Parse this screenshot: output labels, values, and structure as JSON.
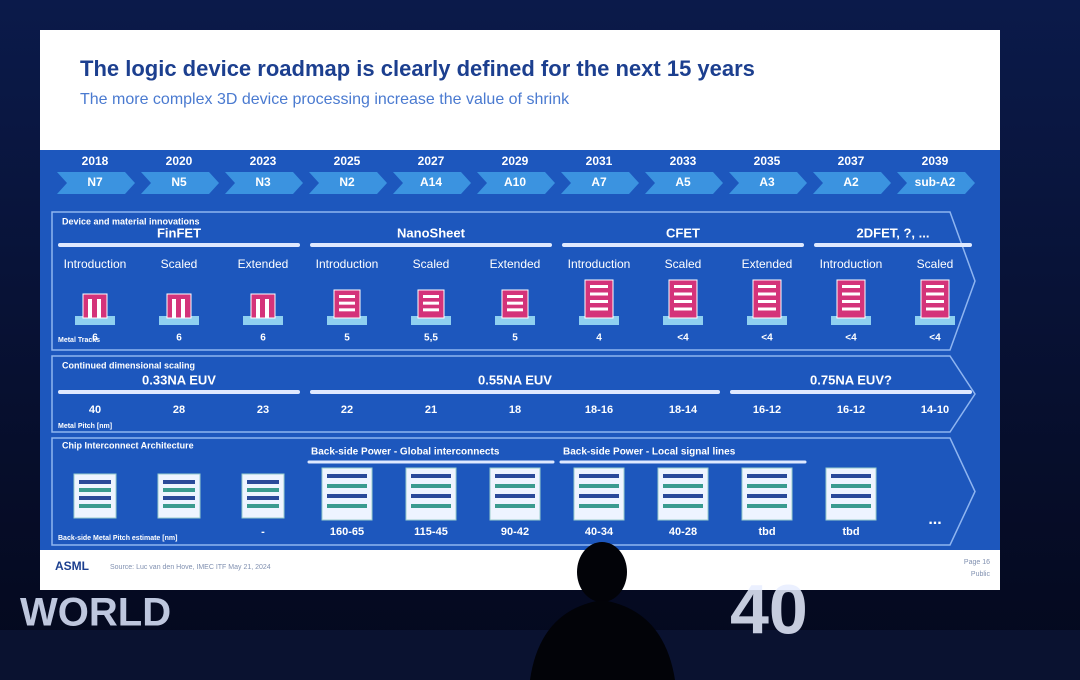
{
  "header": {
    "title": "The logic device roadmap is clearly defined for the next 15 years",
    "subtitle": "The more complex 3D device processing increase the value of shrink"
  },
  "nodes": [
    {
      "year": "2018",
      "name": "N7"
    },
    {
      "year": "2020",
      "name": "N5"
    },
    {
      "year": "2023",
      "name": "N3"
    },
    {
      "year": "2025",
      "name": "N2"
    },
    {
      "year": "2027",
      "name": "A14"
    },
    {
      "year": "2029",
      "name": "A10"
    },
    {
      "year": "2031",
      "name": "A7"
    },
    {
      "year": "2033",
      "name": "A5"
    },
    {
      "year": "2035",
      "name": "A3"
    },
    {
      "year": "2037",
      "name": "A2"
    },
    {
      "year": "2039",
      "name": "sub-A2"
    }
  ],
  "devices": {
    "label": "Device and material innovations",
    "groups": [
      "FinFET",
      "NanoSheet",
      "CFET",
      "2DFET, ?, ..."
    ],
    "stages": [
      "Introduction",
      "Scaled",
      "Extended",
      "Introduction",
      "Scaled",
      "Extended",
      "Introduction",
      "Scaled",
      "Extended",
      "Introduction",
      "Scaled"
    ],
    "tracks_label": "Metal Tracks",
    "tracks": [
      "6",
      "6",
      "6",
      "5",
      "5,5",
      "5",
      "4",
      "<4",
      "<4",
      "<4",
      "<4"
    ]
  },
  "scaling": {
    "label": "Continued dimensional scaling",
    "groups": [
      "0.33NA EUV",
      "0.55NA EUV",
      "0.75NA EUV?"
    ],
    "pitch_label": "Metal Pitch [nm]",
    "pitches": [
      "40",
      "28",
      "23",
      "22",
      "21",
      "18",
      "18-16",
      "18-14",
      "16-12",
      "16-12",
      "14-10"
    ]
  },
  "interconnect": {
    "label": "Chip Interconnect Architecture",
    "groups": [
      "Back-side Power - Global interconnects",
      "Back-side Power - Local signal lines"
    ],
    "pitch_label": "Back-side Metal Pitch estimate [nm]",
    "pitches": [
      "-",
      "160-65",
      "115-45",
      "90-42",
      "40-34",
      "40-28",
      "tbd",
      "tbd"
    ],
    "more": "..."
  },
  "footer": {
    "logo": "ASML",
    "source": "Source: Luc van den Hove, IMEC ITF May 21, 2024",
    "page": "Page 16",
    "classification": "Public"
  },
  "stage": {
    "sign": "WORLD",
    "number": "40"
  }
}
